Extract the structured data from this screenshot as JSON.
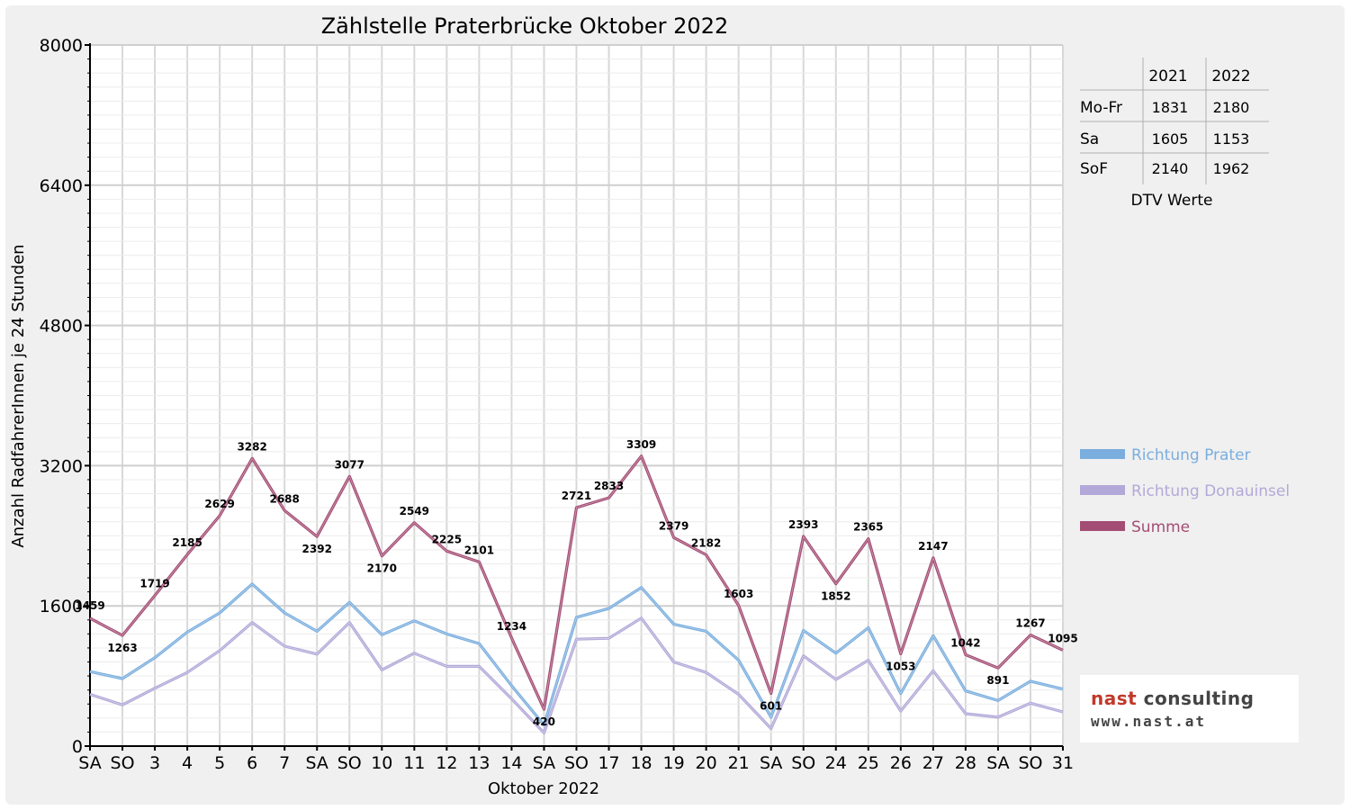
{
  "chart_data": {
    "type": "line",
    "title": "Zählstelle Praterbrücke Oktober 2022",
    "xlabel": "Oktober 2022",
    "ylabel": "Anzahl RadfahrerInnen je 24 Stunden",
    "ylim": [
      0,
      8000
    ],
    "yticks": [
      "0",
      "1600",
      "3200",
      "4800",
      "6400",
      "8000"
    ],
    "grid": true,
    "legend_position": "right",
    "categories": [
      "SA",
      "SO",
      "3",
      "4",
      "5",
      "6",
      "7",
      "SA",
      "SO",
      "10",
      "11",
      "12",
      "13",
      "14",
      "SA",
      "SO",
      "17",
      "18",
      "19",
      "20",
      "21",
      "SA",
      "SO",
      "24",
      "25",
      "26",
      "27",
      "28",
      "SA",
      "SO",
      "31"
    ],
    "red_categories": [
      1,
      8,
      15,
      22,
      25,
      29
    ],
    "series": [
      {
        "name": "Richtung Prater",
        "color": "#7aaede",
        "values": [
          850,
          770,
          1010,
          1300,
          1520,
          1850,
          1520,
          1310,
          1640,
          1270,
          1430,
          1280,
          1170,
          690,
          240,
          1470,
          1570,
          1810,
          1390,
          1310,
          980,
          330,
          1320,
          1060,
          1350,
          600,
          1260,
          630,
          520,
          740,
          650
        ]
      },
      {
        "name": "Richtung Donauinsel",
        "color": "#b3a9d9",
        "values": [
          590,
          470,
          660,
          840,
          1090,
          1410,
          1140,
          1050,
          1410,
          870,
          1060,
          910,
          910,
          540,
          150,
          1220,
          1230,
          1460,
          960,
          840,
          590,
          200,
          1030,
          760,
          980,
          400,
          860,
          370,
          330,
          490,
          390
        ]
      },
      {
        "name": "Summe",
        "color": "#a44d74",
        "values": [
          1459,
          1263,
          1719,
          2185,
          2629,
          3282,
          2688,
          2392,
          3077,
          2170,
          2549,
          2225,
          2101,
          1234,
          420,
          2721,
          2833,
          3309,
          2379,
          2182,
          1603,
          601,
          2393,
          1852,
          2365,
          1053,
          2147,
          1042,
          891,
          1267,
          1095
        ]
      }
    ],
    "data_labels": [
      "1459",
      "1263",
      "1719",
      "2185",
      "2629",
      "3282",
      "2688",
      "2392",
      "3077",
      "2170",
      "2549",
      "2225",
      "2101",
      "1234",
      "420",
      "2721",
      "2833",
      "3309",
      "2379",
      "2182",
      "1603",
      "601",
      "2393",
      "1852",
      "2365",
      "1053",
      "2147",
      "1042",
      "891",
      "1267",
      "1095"
    ],
    "dtv_table": {
      "caption": "DTV Werte",
      "header": [
        "",
        "2021",
        "2022"
      ],
      "rows": [
        [
          "Mo-Fr",
          "1831",
          "2180"
        ],
        [
          "Sa",
          "1605",
          "1153"
        ],
        [
          "SoF",
          "2140",
          "1962"
        ]
      ]
    }
  },
  "logo": {
    "line1_a": "nast",
    "line1_b": " consulting",
    "line2": "www.nast.at"
  }
}
